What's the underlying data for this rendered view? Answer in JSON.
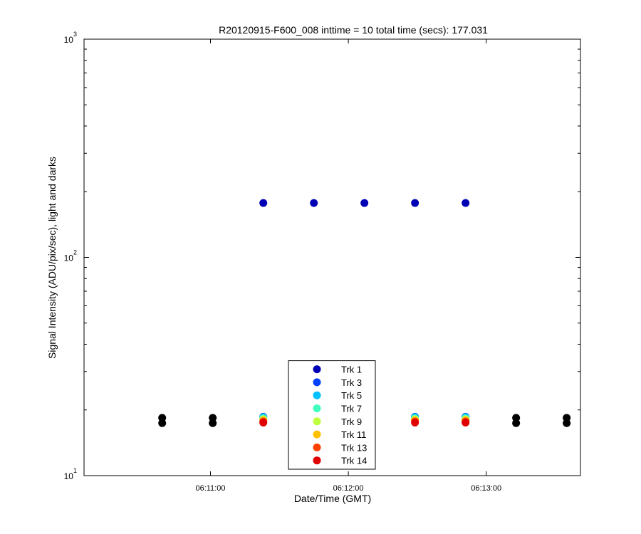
{
  "chart_data": {
    "type": "scatter",
    "title": "R20120915-F600_008 inttime = 10 total time (secs): 177.031",
    "xlabel": "Date/Time (GMT)",
    "ylabel": "Signal Intensity (ADU/pix/sec), light and darks",
    "x": [
      "06:10:39",
      "06:11:01",
      "06:11:23",
      "06:11:45",
      "06:12:07",
      "06:12:29",
      "06:12:51",
      "06:13:13",
      "06:13:35"
    ],
    "xlim": [
      "06:10:05",
      "06:13:41"
    ],
    "xticks": [
      "06:11:00",
      "06:12:00",
      "06:13:00"
    ],
    "ylim": [
      10,
      1000
    ],
    "yticks": [
      {
        "value": 10,
        "label": "10",
        "exponent": "1"
      },
      {
        "value": 100,
        "label": "10",
        "exponent": "2"
      },
      {
        "value": 1000,
        "label": "10",
        "exponent": "3"
      }
    ],
    "log_y": true,
    "grid": false,
    "legend": "south",
    "series": [
      {
        "color": "#000000",
        "values": [
          18.4,
          18.4,
          null,
          null,
          null,
          null,
          null,
          18.4,
          18.4
        ]
      },
      {
        "color": "#000000",
        "values": [
          17.4,
          17.4,
          null,
          null,
          null,
          null,
          null,
          17.4,
          17.4
        ]
      },
      {
        "name": "Trk 1",
        "color": "#0000b4",
        "values": [
          null,
          null,
          177.5,
          177.5,
          177.5,
          177.5,
          177.5,
          null,
          null
        ]
      },
      {
        "name": "Trk 3",
        "color": "#0040ff",
        "values": [
          null,
          null,
          18.6,
          null,
          null,
          18.6,
          18.6,
          null,
          null
        ]
      },
      {
        "name": "Trk 5",
        "color": "#00c0ff",
        "values": [
          null,
          null,
          18.5,
          null,
          null,
          18.5,
          18.5,
          null,
          null
        ]
      },
      {
        "name": "Trk 7",
        "color": "#40ffc0",
        "values": [
          null,
          null,
          18.3,
          null,
          null,
          18.3,
          18.3,
          null,
          null
        ]
      },
      {
        "name": "Trk 9",
        "color": "#c0ff40",
        "values": [
          null,
          null,
          18.1,
          null,
          null,
          18.1,
          18.1,
          null,
          null
        ]
      },
      {
        "name": "Trk 11",
        "color": "#ffc000",
        "values": [
          null,
          null,
          17.9,
          null,
          null,
          17.9,
          17.9,
          null,
          null
        ]
      },
      {
        "name": "Trk 13",
        "color": "#ff4000",
        "values": [
          null,
          null,
          17.7,
          null,
          null,
          17.7,
          17.7,
          null,
          null
        ]
      },
      {
        "name": "Trk 14",
        "color": "#e00000",
        "values": [
          null,
          null,
          17.5,
          null,
          null,
          17.5,
          17.5,
          null,
          null
        ]
      }
    ]
  }
}
